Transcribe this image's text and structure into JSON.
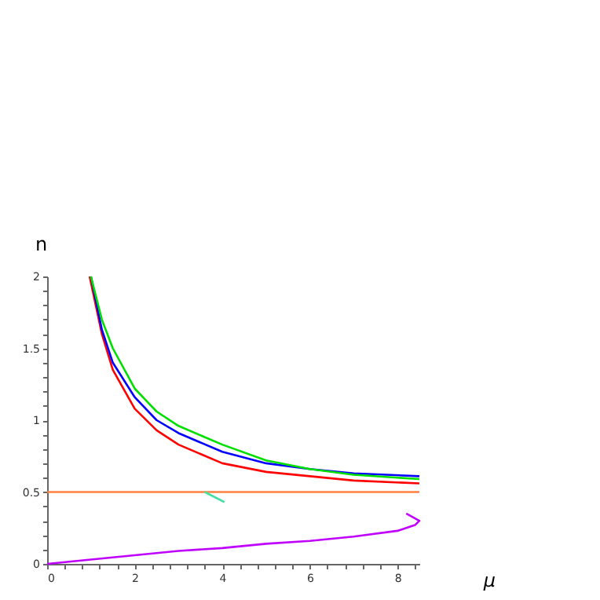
{
  "chart_data": {
    "type": "line",
    "xlabel": "μ",
    "ylabel": "n",
    "xlim": [
      0,
      8.5
    ],
    "ylim": [
      0,
      2
    ],
    "xticks": [
      0,
      {
        "value": 0.4,
        "label": null
      },
      {
        "value": 0.8,
        "label": null
      },
      {
        "value": 1.2,
        "label": null
      },
      {
        "value": 1.6,
        "label": null
      },
      2,
      {
        "value": 2.4,
        "label": null
      },
      {
        "value": 2.8,
        "label": null
      },
      {
        "value": 3.2,
        "label": null
      },
      {
        "value": 3.6,
        "label": null
      },
      4,
      {
        "value": 4.4,
        "label": null
      },
      {
        "value": 4.8,
        "label": null
      },
      {
        "value": 5.2,
        "label": null
      },
      {
        "value": 5.6,
        "label": null
      },
      6,
      {
        "value": 6.4,
        "label": null
      },
      {
        "value": 6.8,
        "label": null
      },
      {
        "value": 7.2,
        "label": null
      },
      {
        "value": 7.6,
        "label": null
      },
      8,
      {
        "value": 8.4,
        "label": null
      }
    ],
    "yticks": [
      0,
      {
        "value": 0.1,
        "label": null
      },
      {
        "value": 0.2,
        "label": null
      },
      {
        "value": 0.3,
        "label": null
      },
      {
        "value": 0.4,
        "label": null
      },
      0.5,
      {
        "value": 0.6,
        "label": null
      },
      {
        "value": 0.7,
        "label": null
      },
      {
        "value": 0.8,
        "label": null
      },
      {
        "value": 0.9,
        "label": null
      },
      1,
      {
        "value": 1.1,
        "label": null
      },
      {
        "value": 1.2,
        "label": null
      },
      {
        "value": 1.3,
        "label": null
      },
      {
        "value": 1.4,
        "label": null
      },
      1.5,
      {
        "value": 1.6,
        "label": null
      },
      {
        "value": 1.7,
        "label": null
      },
      {
        "value": 1.8,
        "label": null
      },
      {
        "value": 1.9,
        "label": null
      },
      2
    ],
    "grid": false,
    "legend": false,
    "marker": "none",
    "line_style": "solid",
    "series": [
      {
        "color": "#ff0000",
        "x": [
          0.97,
          1.25,
          1.5,
          2,
          2.5,
          3,
          4,
          5,
          6,
          7,
          8.5
        ],
        "values": [
          2,
          1.6,
          1.35,
          1.08,
          0.93,
          0.83,
          0.7,
          0.64,
          0.61,
          0.58,
          0.56
        ]
      },
      {
        "color": "#0000ff",
        "x": [
          1,
          1.25,
          1.5,
          2,
          2.5,
          3,
          4,
          5,
          6,
          7,
          8.5
        ],
        "values": [
          2,
          1.63,
          1.4,
          1.16,
          1.0,
          0.91,
          0.78,
          0.7,
          0.66,
          0.63,
          0.61
        ]
      },
      {
        "color": "#00e000",
        "x": [
          1,
          1.25,
          1.5,
          2,
          2.5,
          3,
          4,
          5,
          6,
          7,
          8.5
        ],
        "values": [
          2,
          1.7,
          1.5,
          1.22,
          1.06,
          0.96,
          0.83,
          0.72,
          0.66,
          0.62,
          0.59
        ]
      },
      {
        "color": "#ff8040",
        "x": [
          0,
          8.5
        ],
        "values": [
          0.5,
          0.5
        ]
      },
      {
        "color": "#40e0a0",
        "x": [
          3.6,
          4.05
        ],
        "values": [
          0.5,
          0.43
        ]
      },
      {
        "color": "#c000ff",
        "x": [
          0,
          1,
          2,
          3,
          4,
          5,
          6,
          7,
          8,
          8.4,
          8.5,
          8.2
        ],
        "values": [
          0,
          0.03,
          0.06,
          0.09,
          0.11,
          0.14,
          0.16,
          0.19,
          0.23,
          0.27,
          0.3,
          0.35
        ]
      }
    ]
  }
}
